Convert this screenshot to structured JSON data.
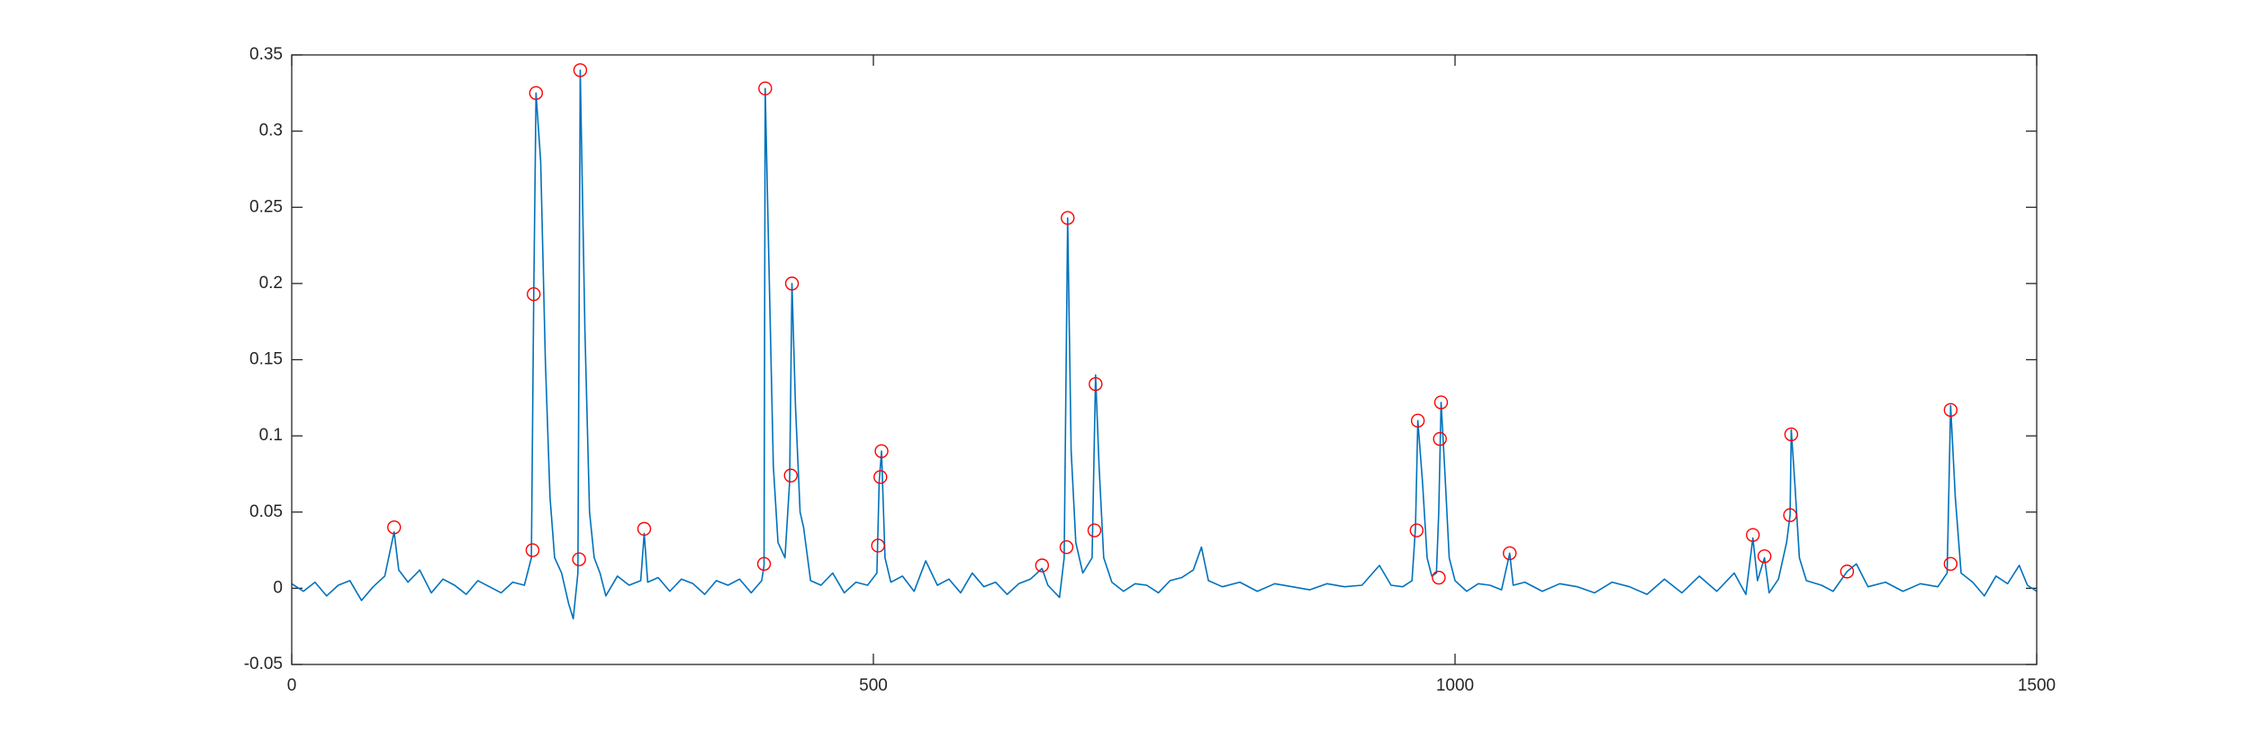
{
  "chart_data": {
    "type": "line",
    "xlim": [
      0,
      1500
    ],
    "xticks": [
      0,
      500,
      1000,
      1500
    ],
    "ylim": [
      -0.05,
      0.35
    ],
    "yticks": [
      -0.05,
      0,
      0.05,
      0.1,
      0.15,
      0.2,
      0.25,
      0.3,
      0.35
    ],
    "box": true,
    "series": [
      {
        "color": "#0072bd",
        "line": true,
        "marker": "none",
        "x": [
          0,
          10,
          20,
          30,
          40,
          50,
          60,
          70,
          80,
          88,
          92,
          100,
          110,
          120,
          130,
          140,
          150,
          160,
          170,
          180,
          190,
          200,
          206,
          208,
          210,
          214,
          218,
          222,
          226,
          232,
          238,
          242,
          246,
          248,
          252,
          256,
          260,
          265,
          270,
          280,
          290,
          300,
          303,
          306,
          315,
          325,
          335,
          345,
          355,
          365,
          375,
          385,
          395,
          404,
          406,
          407,
          410,
          414,
          418,
          424,
          428,
          430,
          433,
          437,
          440,
          446,
          455,
          465,
          475,
          485,
          495,
          503,
          505,
          507,
          510,
          515,
          525,
          535,
          545,
          555,
          565,
          575,
          585,
          595,
          605,
          615,
          625,
          635,
          645,
          650,
          660,
          664,
          667,
          670,
          674,
          680,
          688,
          691,
          694,
          698,
          705,
          715,
          725,
          735,
          745,
          755,
          765,
          775,
          782,
          788,
          800,
          815,
          830,
          845,
          860,
          875,
          890,
          905,
          920,
          935,
          945,
          955,
          963,
          966,
          968,
          972,
          976,
          980,
          984,
          986,
          988,
          991,
          995,
          1000,
          1010,
          1020,
          1030,
          1040,
          1047,
          1050,
          1060,
          1075,
          1090,
          1105,
          1120,
          1135,
          1150,
          1165,
          1180,
          1195,
          1210,
          1225,
          1240,
          1250,
          1256,
          1260,
          1266,
          1270,
          1278,
          1285,
          1288,
          1289,
          1292,
          1296,
          1302,
          1315,
          1325,
          1337,
          1345,
          1355,
          1370,
          1385,
          1400,
          1415,
          1423,
          1426,
          1430,
          1435,
          1445,
          1455,
          1465,
          1475,
          1485,
          1492,
          1500
        ],
        "values": [
          0.003,
          -0.002,
          0.004,
          -0.005,
          0.002,
          0.005,
          -0.008,
          0.001,
          0.008,
          0.037,
          0.012,
          0.004,
          0.012,
          -0.003,
          0.006,
          0.002,
          -0.004,
          0.005,
          0.001,
          -0.003,
          0.004,
          0.002,
          0.02,
          0.19,
          0.325,
          0.28,
          0.15,
          0.06,
          0.02,
          0.01,
          -0.01,
          -0.02,
          0.01,
          0.34,
          0.17,
          0.05,
          0.02,
          0.01,
          -0.005,
          0.008,
          0.002,
          0.005,
          0.036,
          0.004,
          0.007,
          -0.002,
          0.006,
          0.003,
          -0.004,
          0.005,
          0.002,
          0.006,
          -0.003,
          0.005,
          0.015,
          0.328,
          0.22,
          0.08,
          0.03,
          0.02,
          0.07,
          0.2,
          0.12,
          0.05,
          0.04,
          0.005,
          0.002,
          0.01,
          -0.003,
          0.004,
          0.002,
          0.01,
          0.07,
          0.09,
          0.02,
          0.004,
          0.008,
          -0.002,
          0.018,
          0.002,
          0.006,
          -0.003,
          0.01,
          0.001,
          0.004,
          -0.004,
          0.003,
          0.006,
          0.013,
          0.002,
          -0.006,
          0.02,
          0.243,
          0.09,
          0.03,
          0.01,
          0.02,
          0.14,
          0.08,
          0.02,
          0.004,
          -0.002,
          0.003,
          0.002,
          -0.003,
          0.005,
          0.007,
          0.012,
          0.027,
          0.005,
          0.001,
          0.004,
          -0.002,
          0.003,
          0.001,
          -0.001,
          0.003,
          0.001,
          0.002,
          0.015,
          0.002,
          0.001,
          0.005,
          0.04,
          0.11,
          0.07,
          0.02,
          0.008,
          0.01,
          0.05,
          0.122,
          0.08,
          0.02,
          0.005,
          -0.002,
          0.003,
          0.002,
          -0.001,
          0.023,
          0.002,
          0.004,
          -0.002,
          0.003,
          0.001,
          -0.003,
          0.004,
          0.001,
          -0.004,
          0.006,
          -0.003,
          0.008,
          -0.002,
          0.01,
          -0.004,
          0.033,
          0.005,
          0.02,
          -0.003,
          0.006,
          0.03,
          0.048,
          0.104,
          0.07,
          0.02,
          0.005,
          0.002,
          -0.002,
          0.011,
          0.016,
          0.001,
          0.004,
          -0.002,
          0.003,
          0.001,
          0.01,
          0.12,
          0.06,
          0.01,
          0.004,
          -0.005,
          0.008,
          0.003,
          0.015,
          0.002,
          -0.002
        ]
      },
      {
        "color": "#ff0000",
        "line": false,
        "marker": "circle",
        "x": [
          88,
          210,
          208,
          207,
          248,
          247,
          303,
          407,
          406,
          430,
          429,
          507,
          506,
          504,
          645,
          667,
          666,
          691,
          690,
          968,
          967,
          988,
          987,
          986,
          1047,
          1256,
          1266,
          1289,
          1288,
          1337,
          1426,
          1426
        ],
        "values": [
          0.04,
          0.325,
          0.193,
          0.025,
          0.34,
          0.019,
          0.039,
          0.328,
          0.016,
          0.2,
          0.074,
          0.09,
          0.073,
          0.028,
          0.015,
          0.243,
          0.027,
          0.134,
          0.038,
          0.11,
          0.038,
          0.122,
          0.098,
          0.007,
          0.023,
          0.035,
          0.021,
          0.101,
          0.048,
          0.011,
          0.117,
          0.016
        ]
      }
    ]
  }
}
